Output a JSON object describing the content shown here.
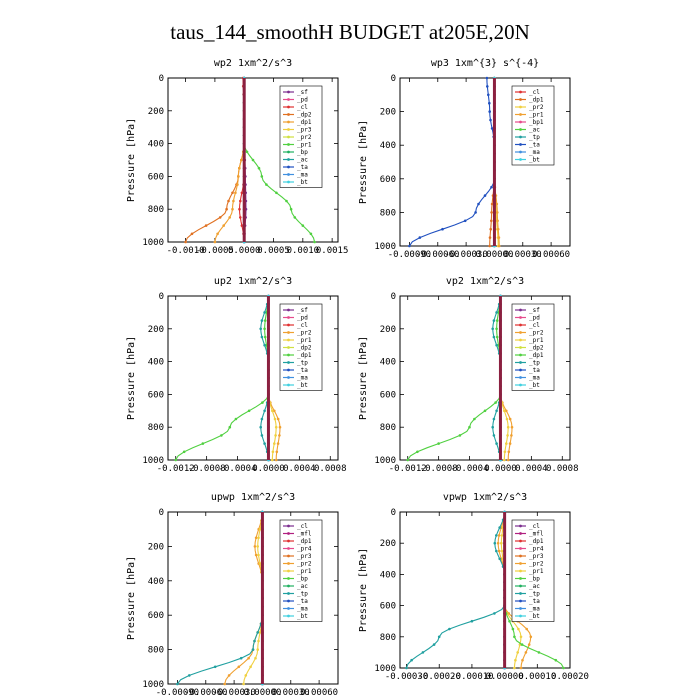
{
  "title": "taus_144_smoothH  BUDGET at205E,20N",
  "chart_data": [
    {
      "type": "line",
      "title": "wp2   1xm^2/s^3",
      "ylabel": "Pressure [hPa]",
      "ylim": [
        1000,
        0
      ],
      "xlim": [
        -0.0013,
        0.0016
      ],
      "xticks": [
        -0.001,
        -0.0005,
        0,
        0.0005,
        0.001,
        0.0015
      ],
      "xticklabels": [
        "-0.0010",
        "-0.0005",
        "0.0000",
        "0.0005",
        "0.0010",
        "0.0015"
      ],
      "yticks": [
        0,
        200,
        400,
        600,
        800,
        1000
      ],
      "legend_position": "top-right",
      "series": [
        {
          "name": "_sf",
          "color": "#7b2d8e",
          "x": [
            0,
            0,
            0,
            2e-05,
            3e-05,
            0
          ]
        },
        {
          "name": "_pd",
          "color": "#e64b8c",
          "x": [
            0,
            0,
            0,
            0,
            0,
            0
          ]
        },
        {
          "name": "_cl",
          "color": "#e03030",
          "x": [
            -2e-05,
            0,
            0,
            0,
            -8e-05,
            0
          ]
        },
        {
          "name": "_dp2",
          "color": "#e07020",
          "x": [
            0,
            0,
            0,
            -0.0001,
            -0.0003,
            -0.001
          ]
        },
        {
          "name": "_dp1",
          "color": "#f0a030",
          "x": [
            0,
            0,
            0,
            -0.0001,
            -0.0002,
            -0.0005
          ]
        },
        {
          "name": "_pr3",
          "color": "#f0d040",
          "x": [
            0,
            0,
            0,
            0,
            0,
            0
          ]
        },
        {
          "name": "_pr2",
          "color": "#d0e040",
          "x": [
            0,
            0,
            0,
            0,
            0,
            0
          ]
        },
        {
          "name": "_pr1",
          "color": "#50d040",
          "x": [
            0,
            0,
            0,
            0.0003,
            0.0008,
            0.0012
          ]
        },
        {
          "name": "_bp",
          "color": "#20b060",
          "x": [
            0,
            0,
            0,
            0,
            0,
            0
          ]
        },
        {
          "name": "_ac",
          "color": "#20a0a0",
          "x": [
            0,
            0,
            0,
            0,
            0,
            0
          ]
        },
        {
          "name": "_ta",
          "color": "#2050c0",
          "x": [
            0,
            0,
            0,
            0,
            0,
            0
          ]
        },
        {
          "name": "_ma",
          "color": "#4090e0",
          "x": [
            0,
            0,
            0,
            0,
            0,
            0
          ]
        },
        {
          "name": "_bt",
          "color": "#40d0e0",
          "x": [
            0,
            0,
            0,
            0,
            0,
            0
          ]
        }
      ],
      "y": [
        0,
        200,
        400,
        600,
        800,
        1000
      ]
    },
    {
      "type": "line",
      "title": "wp3   1xm^{3} s^{-4}",
      "ylabel": "Pressure [hPa]",
      "ylim": [
        1000,
        0
      ],
      "xlim": [
        -0.001,
        0.0008
      ],
      "xticks": [
        -0.0009,
        -0.0006,
        -0.0003,
        0,
        0.0003,
        0.0006
      ],
      "xticklabels": [
        "-0.00090",
        "-0.00060",
        "-0.00030",
        "0.00000",
        "0.00030",
        "0.00060"
      ],
      "yticks": [
        0,
        200,
        400,
        600,
        800,
        1000
      ],
      "legend_position": "top-right",
      "series": [
        {
          "name": "_cl",
          "color": "#e03030",
          "x": [
            0,
            0,
            0,
            0,
            0,
            0
          ]
        },
        {
          "name": "_dp1",
          "color": "#e07020",
          "x": [
            0,
            0,
            0,
            0,
            -3e-05,
            -5e-05
          ]
        },
        {
          "name": "_pr2",
          "color": "#f0d040",
          "x": [
            0,
            0,
            0,
            0,
            2e-05,
            4e-05
          ]
        },
        {
          "name": "_pr1",
          "color": "#f0a030",
          "x": [
            0,
            0,
            0,
            0,
            3e-05,
            5e-05
          ]
        },
        {
          "name": "_bp1",
          "color": "#e64b8c",
          "x": [
            0,
            0,
            0,
            0,
            0,
            0
          ]
        },
        {
          "name": "_ac",
          "color": "#50d040",
          "x": [
            0,
            0,
            0,
            0,
            0,
            0
          ]
        },
        {
          "name": "_tp",
          "color": "#20a0a0",
          "x": [
            0,
            0,
            0,
            0,
            0,
            0
          ]
        },
        {
          "name": "_ta",
          "color": "#2050c0",
          "x": [
            -8e-05,
            -5e-05,
            0,
            0,
            -0.0002,
            -0.0009
          ]
        },
        {
          "name": "_ma",
          "color": "#4090e0",
          "x": [
            0,
            0,
            0,
            0,
            0,
            0
          ]
        },
        {
          "name": "_bt",
          "color": "#40d0e0",
          "x": [
            0,
            0,
            0,
            0,
            0,
            0
          ]
        }
      ],
      "y": [
        0,
        200,
        400,
        600,
        800,
        1000
      ]
    },
    {
      "type": "line",
      "title": "up2   1xm^2/s^3",
      "ylabel": "Pressure [hPa]",
      "ylim": [
        1000,
        0
      ],
      "xlim": [
        -0.0013,
        0.0009
      ],
      "xticks": [
        -0.0012,
        -0.0008,
        -0.0004,
        0,
        0.0004,
        0.0008
      ],
      "xticklabels": [
        "-0.0012",
        "-0.0008",
        "-0.0004",
        "0.0000",
        "0.0004",
        "0.0008"
      ],
      "yticks": [
        0,
        200,
        400,
        600,
        800,
        1000
      ],
      "legend_position": "top-right",
      "series": [
        {
          "name": "_sf",
          "color": "#7b2d8e",
          "x": [
            0,
            0,
            0,
            0,
            0,
            0
          ]
        },
        {
          "name": "_pd",
          "color": "#e64b8c",
          "x": [
            0,
            0,
            0,
            0,
            0,
            0
          ]
        },
        {
          "name": "_cl",
          "color": "#e03030",
          "x": [
            0,
            0,
            0,
            0,
            0,
            0
          ]
        },
        {
          "name": "_pr2",
          "color": "#f0a030",
          "x": [
            0,
            0,
            0,
            0,
            0.00015,
            0.0001
          ]
        },
        {
          "name": "_pr1",
          "color": "#f0d040",
          "x": [
            0,
            0,
            0,
            0,
            0.0001,
            5e-05
          ]
        },
        {
          "name": "_dp2",
          "color": "#d0e040",
          "x": [
            0,
            0,
            0,
            0,
            0,
            0
          ]
        },
        {
          "name": "_dp1",
          "color": "#50d040",
          "x": [
            0,
            -5e-05,
            0,
            0,
            -0.0005,
            -0.0012
          ]
        },
        {
          "name": "_tp",
          "color": "#20a0a0",
          "x": [
            0,
            -0.0001,
            0,
            0,
            -0.0001,
            0
          ]
        },
        {
          "name": "_ta",
          "color": "#2050c0",
          "x": [
            0,
            0,
            0,
            0,
            0,
            0
          ]
        },
        {
          "name": "_ma",
          "color": "#4090e0",
          "x": [
            0,
            0,
            0,
            0,
            0,
            0
          ]
        },
        {
          "name": "_bt",
          "color": "#40d0e0",
          "x": [
            0,
            0,
            0,
            0,
            0,
            0
          ]
        }
      ],
      "y": [
        0,
        200,
        400,
        600,
        800,
        1000
      ]
    },
    {
      "type": "line",
      "title": "vp2   1xm^2/s^3",
      "ylabel": "Pressure [hPa]",
      "ylim": [
        1000,
        0
      ],
      "xlim": [
        -0.0013,
        0.0009
      ],
      "xticks": [
        -0.0012,
        -0.0008,
        -0.0004,
        0,
        0.0004,
        0.0008
      ],
      "xticklabels": [
        "-0.0012",
        "-0.0008",
        "-0.0004",
        "0.0000",
        "0.0004",
        "0.0008"
      ],
      "yticks": [
        0,
        200,
        400,
        600,
        800,
        1000
      ],
      "legend_position": "top-right",
      "series": [
        {
          "name": "_sf",
          "color": "#7b2d8e",
          "x": [
            0,
            0,
            0,
            0,
            0,
            0
          ]
        },
        {
          "name": "_pd",
          "color": "#e64b8c",
          "x": [
            0,
            0,
            0,
            0,
            0,
            0
          ]
        },
        {
          "name": "_cl",
          "color": "#e03030",
          "x": [
            0,
            0,
            0,
            0,
            0,
            0
          ]
        },
        {
          "name": "_pr2",
          "color": "#f0a030",
          "x": [
            0,
            0,
            0,
            0,
            0.00015,
            0.0001
          ]
        },
        {
          "name": "_pr1",
          "color": "#f0d040",
          "x": [
            0,
            0,
            0,
            0,
            0.0001,
            5e-05
          ]
        },
        {
          "name": "_dp2",
          "color": "#d0e040",
          "x": [
            0,
            0,
            0,
            0,
            0,
            0
          ]
        },
        {
          "name": "_dp1",
          "color": "#50d040",
          "x": [
            0,
            -5e-05,
            0,
            0,
            -0.0004,
            -0.0012
          ]
        },
        {
          "name": "_tp",
          "color": "#20a0a0",
          "x": [
            0,
            -0.0001,
            0,
            0,
            -0.0001,
            0
          ]
        },
        {
          "name": "_ta",
          "color": "#2050c0",
          "x": [
            0,
            0,
            0,
            0,
            0,
            0
          ]
        },
        {
          "name": "_ma",
          "color": "#4090e0",
          "x": [
            0,
            0,
            0,
            0,
            0,
            0
          ]
        },
        {
          "name": "_bt",
          "color": "#40d0e0",
          "x": [
            0,
            0,
            0,
            0,
            0,
            0
          ]
        }
      ],
      "y": [
        0,
        200,
        400,
        600,
        800,
        1000
      ]
    },
    {
      "type": "line",
      "title": "upwp   1xm^2/s^3",
      "ylabel": "Pressure [hPa]",
      "ylim": [
        1000,
        0
      ],
      "xlim": [
        -0.001,
        0.0008
      ],
      "xticks": [
        -0.0009,
        -0.0006,
        -0.0003,
        0,
        0.0003,
        0.0006
      ],
      "xticklabels": [
        "-0.00090",
        "-0.00060",
        "-0.00030",
        "0.00000",
        "0.00030",
        "0.00060"
      ],
      "yticks": [
        0,
        200,
        400,
        600,
        800,
        1000
      ],
      "legend_position": "top-right",
      "series": [
        {
          "name": "_cl",
          "color": "#7b2d8e",
          "x": [
            0,
            0,
            0,
            0,
            0,
            0
          ]
        },
        {
          "name": "_mfl",
          "color": "#b02080",
          "x": [
            0,
            0,
            0,
            0,
            0,
            0
          ]
        },
        {
          "name": "_dp1",
          "color": "#e03030",
          "x": [
            0,
            0,
            0,
            0,
            0,
            0
          ]
        },
        {
          "name": "_pr4",
          "color": "#e64b8c",
          "x": [
            0,
            0,
            0,
            0,
            0,
            0
          ]
        },
        {
          "name": "_pr3",
          "color": "#e07020",
          "x": [
            0,
            0,
            0,
            0,
            0,
            0
          ]
        },
        {
          "name": "_pr2",
          "color": "#f0a030",
          "x": [
            0,
            -8e-05,
            0,
            0,
            -0.0001,
            -0.0004
          ]
        },
        {
          "name": "_pr1",
          "color": "#f0d040",
          "x": [
            0,
            -5e-05,
            0,
            0,
            -5e-05,
            -0.0002
          ]
        },
        {
          "name": "_bp",
          "color": "#50d040",
          "x": [
            0,
            0,
            0,
            0,
            0,
            0
          ]
        },
        {
          "name": "_ac",
          "color": "#20b060",
          "x": [
            0,
            0,
            0,
            0,
            0,
            0
          ]
        },
        {
          "name": "_tp",
          "color": "#20a0a0",
          "x": [
            0,
            0,
            0,
            0,
            -0.0001,
            -0.0009
          ]
        },
        {
          "name": "_ta",
          "color": "#2050c0",
          "x": [
            0,
            0,
            0,
            0,
            0,
            0
          ]
        },
        {
          "name": "_ma",
          "color": "#4090e0",
          "x": [
            0,
            0,
            0,
            0,
            0,
            0
          ]
        },
        {
          "name": "_bt",
          "color": "#40d0e0",
          "x": [
            0,
            0,
            0,
            0,
            0,
            0
          ]
        }
      ],
      "y": [
        0,
        200,
        400,
        600,
        800,
        1000
      ]
    },
    {
      "type": "line",
      "title": "vpwp   1xm^2/s^3",
      "ylabel": "Pressure [hPa]",
      "ylim": [
        1000,
        0
      ],
      "xlim": [
        -0.00032,
        0.0002
      ],
      "xticks": [
        -0.0003,
        -0.0002,
        -0.0001,
        0,
        0.0001,
        0.0002
      ],
      "xticklabels": [
        "-0.00030",
        "-0.00020",
        "-0.00010",
        "0.00000",
        "0.00010",
        "0.00020"
      ],
      "yticks": [
        0,
        200,
        400,
        600,
        800,
        1000
      ],
      "legend_position": "top-right",
      "series": [
        {
          "name": "_cl",
          "color": "#7b2d8e",
          "x": [
            0,
            0,
            0,
            0,
            0,
            0
          ]
        },
        {
          "name": "_mfl",
          "color": "#b02080",
          "x": [
            0,
            0,
            0,
            0,
            0,
            0
          ]
        },
        {
          "name": "_dp1",
          "color": "#e03030",
          "x": [
            0,
            0,
            0,
            0,
            0,
            0
          ]
        },
        {
          "name": "_pr4",
          "color": "#e64b8c",
          "x": [
            0,
            0,
            0,
            0,
            0,
            0
          ]
        },
        {
          "name": "_pr3",
          "color": "#e07020",
          "x": [
            0,
            0,
            0,
            0,
            0,
            0
          ]
        },
        {
          "name": "_pr2",
          "color": "#f0a030",
          "x": [
            0,
            -2e-05,
            0,
            0,
            8e-05,
            5e-05
          ]
        },
        {
          "name": "_pr1",
          "color": "#f0d040",
          "x": [
            0,
            -1e-05,
            0,
            0,
            5e-05,
            3e-05
          ]
        },
        {
          "name": "_bp",
          "color": "#50d040",
          "x": [
            0,
            0,
            0,
            0,
            3e-05,
            0.00018
          ]
        },
        {
          "name": "_ac",
          "color": "#20b060",
          "x": [
            0,
            0,
            0,
            0,
            0,
            0
          ]
        },
        {
          "name": "_tp",
          "color": "#20a0a0",
          "x": [
            0,
            -3e-05,
            0,
            0,
            -0.0002,
            -0.0003
          ]
        },
        {
          "name": "_ta",
          "color": "#2050c0",
          "x": [
            0,
            0,
            0,
            0,
            0,
            0
          ]
        },
        {
          "name": "_ma",
          "color": "#4090e0",
          "x": [
            0,
            0,
            0,
            0,
            0,
            0
          ]
        },
        {
          "name": "_bt",
          "color": "#40d0e0",
          "x": [
            0,
            0,
            0,
            0,
            0,
            0
          ]
        }
      ],
      "y": [
        0,
        200,
        400,
        600,
        800,
        1000
      ]
    }
  ]
}
